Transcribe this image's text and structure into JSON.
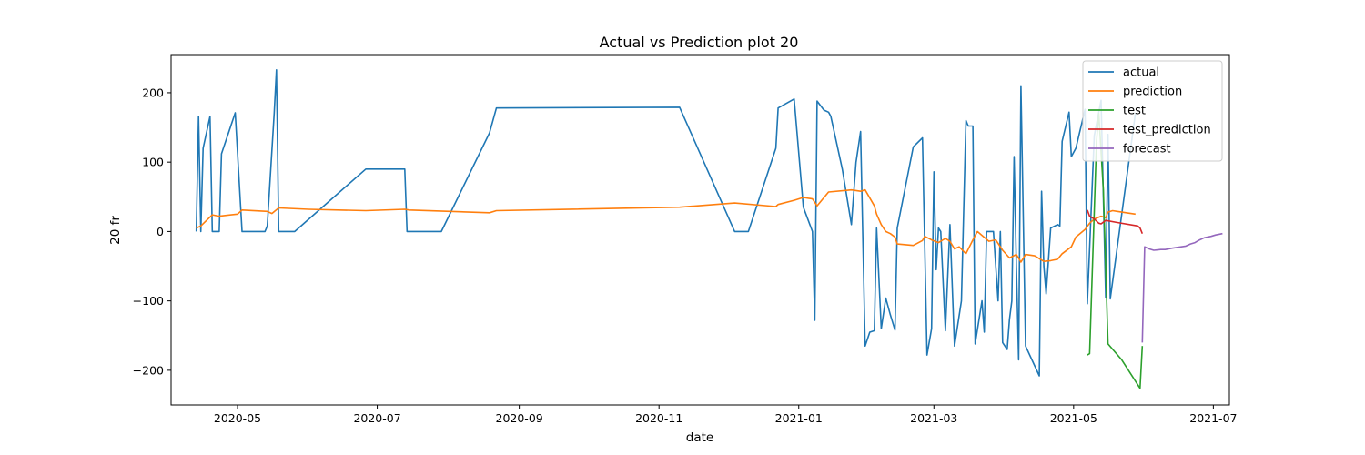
{
  "chart_data": {
    "type": "line",
    "title": "Actual vs Prediction plot 20",
    "xlabel": "date",
    "ylabel": "20 fr",
    "xlim": [
      "2020-04-02",
      "2021-07-08"
    ],
    "ylim": [
      -250,
      255
    ],
    "xticks": [
      "2020-05-01",
      "2020-07-01",
      "2020-09-01",
      "2020-11-01",
      "2021-01-01",
      "2021-03-01",
      "2021-05-01",
      "2021-07-01"
    ],
    "xtick_labels": [
      "2020-05",
      "2020-07",
      "2020-09",
      "2020-11",
      "2021-01",
      "2021-03",
      "2021-05",
      "2021-07"
    ],
    "yticks": [
      -200,
      -100,
      0,
      100,
      200
    ],
    "ytick_labels": [
      "−200",
      "−100",
      "0",
      "100",
      "200"
    ],
    "grid": false,
    "legend": "top-right",
    "series": [
      {
        "name": "actual",
        "color": "#1f77b4",
        "points": [
          [
            "2020-04-13",
            0
          ],
          [
            "2020-04-14",
            166
          ],
          [
            "2020-04-15",
            0
          ],
          [
            "2020-04-16",
            120
          ],
          [
            "2020-04-19",
            166
          ],
          [
            "2020-04-20",
            0
          ],
          [
            "2020-04-23",
            0
          ],
          [
            "2020-04-24",
            112
          ],
          [
            "2020-04-30",
            171
          ],
          [
            "2020-05-03",
            0
          ],
          [
            "2020-05-13",
            0
          ],
          [
            "2020-05-14",
            8
          ],
          [
            "2020-05-17",
            170
          ],
          [
            "2020-05-18",
            233
          ],
          [
            "2020-05-19",
            0
          ],
          [
            "2020-05-26",
            0
          ],
          [
            "2020-06-26",
            90
          ],
          [
            "2020-07-13",
            90
          ],
          [
            "2020-07-14",
            0
          ],
          [
            "2020-07-29",
            0
          ],
          [
            "2020-08-19",
            142
          ],
          [
            "2020-08-22",
            178
          ],
          [
            "2020-11-10",
            179
          ],
          [
            "2020-12-04",
            0
          ],
          [
            "2020-12-10",
            0
          ],
          [
            "2020-12-22",
            120
          ],
          [
            "2020-12-23",
            178
          ],
          [
            "2020-12-30",
            191
          ],
          [
            "2021-01-03",
            35
          ],
          [
            "2021-01-07",
            0
          ],
          [
            "2021-01-08",
            -128
          ],
          [
            "2021-01-09",
            188
          ],
          [
            "2021-01-12",
            175
          ],
          [
            "2021-01-14",
            172
          ],
          [
            "2021-01-15",
            166
          ],
          [
            "2021-01-20",
            90
          ],
          [
            "2021-01-24",
            10
          ],
          [
            "2021-01-26",
            100
          ],
          [
            "2021-01-28",
            144
          ],
          [
            "2021-01-30",
            -165
          ],
          [
            "2021-02-01",
            -145
          ],
          [
            "2021-02-03",
            -143
          ],
          [
            "2021-02-04",
            5
          ],
          [
            "2021-02-06",
            -140
          ],
          [
            "2021-02-08",
            -96
          ],
          [
            "2021-02-10",
            -120
          ],
          [
            "2021-02-12",
            -142
          ],
          [
            "2021-02-13",
            5
          ],
          [
            "2021-02-20",
            122
          ],
          [
            "2021-02-24",
            135
          ],
          [
            "2021-02-26",
            -178
          ],
          [
            "2021-02-28",
            -140
          ],
          [
            "2021-03-01",
            86
          ],
          [
            "2021-03-02",
            -55
          ],
          [
            "2021-03-03",
            5
          ],
          [
            "2021-03-04",
            0
          ],
          [
            "2021-03-06",
            -143
          ],
          [
            "2021-03-08",
            10
          ],
          [
            "2021-03-10",
            -165
          ],
          [
            "2021-03-13",
            -100
          ],
          [
            "2021-03-15",
            160
          ],
          [
            "2021-03-16",
            152
          ],
          [
            "2021-03-18",
            152
          ],
          [
            "2021-03-19",
            -162
          ],
          [
            "2021-03-22",
            -100
          ],
          [
            "2021-03-23",
            -145
          ],
          [
            "2021-03-24",
            0
          ],
          [
            "2021-03-27",
            0
          ],
          [
            "2021-03-29",
            -100
          ],
          [
            "2021-03-30",
            0
          ],
          [
            "2021-03-31",
            -160
          ],
          [
            "2021-04-02",
            -170
          ],
          [
            "2021-04-03",
            -127
          ],
          [
            "2021-04-04",
            -100
          ],
          [
            "2021-04-05",
            108
          ],
          [
            "2021-04-06",
            -50
          ],
          [
            "2021-04-07",
            -185
          ],
          [
            "2021-04-08",
            210
          ],
          [
            "2021-04-10",
            -165
          ],
          [
            "2021-04-16",
            -208
          ],
          [
            "2021-04-17",
            58
          ],
          [
            "2021-04-18",
            -50
          ],
          [
            "2021-04-19",
            -90
          ],
          [
            "2021-04-21",
            5
          ],
          [
            "2021-04-24",
            10
          ],
          [
            "2021-04-25",
            8
          ],
          [
            "2021-04-26",
            130
          ],
          [
            "2021-04-29",
            172
          ],
          [
            "2021-04-30",
            108
          ],
          [
            "2021-05-02",
            120
          ],
          [
            "2021-05-06",
            176
          ],
          [
            "2021-05-07",
            -104
          ],
          [
            "2021-05-10",
            138
          ],
          [
            "2021-05-13",
            189
          ],
          [
            "2021-05-15",
            -95
          ],
          [
            "2021-05-16",
            140
          ],
          [
            "2021-05-17",
            -97
          ],
          [
            "2021-05-28",
            171
          ]
        ]
      },
      {
        "name": "prediction",
        "color": "#ff7f0e",
        "points": [
          [
            "2020-04-13",
            5
          ],
          [
            "2020-04-15",
            8
          ],
          [
            "2020-04-20",
            24
          ],
          [
            "2020-04-23",
            22
          ],
          [
            "2020-05-01",
            25
          ],
          [
            "2020-05-03",
            31
          ],
          [
            "2020-05-14",
            29
          ],
          [
            "2020-05-16",
            26
          ],
          [
            "2020-05-19",
            34
          ],
          [
            "2020-06-01",
            32
          ],
          [
            "2020-06-26",
            30
          ],
          [
            "2020-07-13",
            32
          ],
          [
            "2020-07-15",
            31
          ],
          [
            "2020-08-19",
            27
          ],
          [
            "2020-08-22",
            30
          ],
          [
            "2020-11-10",
            35
          ],
          [
            "2020-12-04",
            41
          ],
          [
            "2020-12-22",
            36
          ],
          [
            "2020-12-23",
            39
          ],
          [
            "2020-12-30",
            45
          ],
          [
            "2021-01-03",
            49
          ],
          [
            "2021-01-07",
            47
          ],
          [
            "2021-01-09",
            37
          ],
          [
            "2021-01-14",
            57
          ],
          [
            "2021-01-24",
            60
          ],
          [
            "2021-01-28",
            58
          ],
          [
            "2021-01-30",
            60
          ],
          [
            "2021-02-03",
            37
          ],
          [
            "2021-02-04",
            25
          ],
          [
            "2021-02-06",
            10
          ],
          [
            "2021-02-08",
            0
          ],
          [
            "2021-02-10",
            -3
          ],
          [
            "2021-02-12",
            -8
          ],
          [
            "2021-02-13",
            -18
          ],
          [
            "2021-02-20",
            -20
          ],
          [
            "2021-02-24",
            -13
          ],
          [
            "2021-02-25",
            -7
          ],
          [
            "2021-02-28",
            -12
          ],
          [
            "2021-03-03",
            -16
          ],
          [
            "2021-03-06",
            -10
          ],
          [
            "2021-03-08",
            -14
          ],
          [
            "2021-03-10",
            -25
          ],
          [
            "2021-03-12",
            -22
          ],
          [
            "2021-03-15",
            -32
          ],
          [
            "2021-03-18",
            -12
          ],
          [
            "2021-03-20",
            0
          ],
          [
            "2021-03-25",
            -14
          ],
          [
            "2021-03-28",
            -12
          ],
          [
            "2021-03-31",
            -27
          ],
          [
            "2021-04-03",
            -38
          ],
          [
            "2021-04-06",
            -33
          ],
          [
            "2021-04-08",
            -44
          ],
          [
            "2021-04-10",
            -33
          ],
          [
            "2021-04-14",
            -35
          ],
          [
            "2021-04-18",
            -43
          ],
          [
            "2021-04-21",
            -42
          ],
          [
            "2021-04-24",
            -40
          ],
          [
            "2021-04-26",
            -32
          ],
          [
            "2021-04-30",
            -22
          ],
          [
            "2021-05-02",
            -8
          ],
          [
            "2021-05-06",
            3
          ],
          [
            "2021-05-08",
            12
          ],
          [
            "2021-05-10",
            18
          ],
          [
            "2021-05-13",
            22
          ],
          [
            "2021-05-15",
            20
          ],
          [
            "2021-05-16",
            28
          ],
          [
            "2021-05-18",
            30
          ],
          [
            "2021-05-20",
            29
          ],
          [
            "2021-05-24",
            27
          ],
          [
            "2021-05-28",
            25
          ]
        ]
      },
      {
        "name": "test",
        "color": "#2ca02c",
        "points": [
          [
            "2021-05-07",
            -178
          ],
          [
            "2021-05-08",
            -176
          ],
          [
            "2021-05-11",
            130
          ],
          [
            "2021-05-12",
            170
          ],
          [
            "2021-05-14",
            60
          ],
          [
            "2021-05-16",
            -162
          ],
          [
            "2021-05-22",
            -185
          ],
          [
            "2021-05-30",
            -226
          ],
          [
            "2021-05-31",
            -165
          ]
        ]
      },
      {
        "name": "test_prediction",
        "color": "#d62728",
        "points": [
          [
            "2021-05-07",
            31
          ],
          [
            "2021-05-08",
            22
          ],
          [
            "2021-05-10",
            18
          ],
          [
            "2021-05-12",
            12
          ],
          [
            "2021-05-13",
            11
          ],
          [
            "2021-05-15",
            16
          ],
          [
            "2021-05-20",
            13
          ],
          [
            "2021-05-29",
            8
          ],
          [
            "2021-05-30",
            5
          ],
          [
            "2021-05-31",
            -3
          ]
        ]
      },
      {
        "name": "forecast",
        "color": "#9467bd",
        "points": [
          [
            "2021-05-31",
            -160
          ],
          [
            "2021-06-01",
            -22
          ],
          [
            "2021-06-03",
            -25
          ],
          [
            "2021-06-05",
            -27
          ],
          [
            "2021-06-08",
            -26
          ],
          [
            "2021-06-10",
            -26
          ],
          [
            "2021-06-13",
            -24
          ],
          [
            "2021-06-15",
            -23
          ],
          [
            "2021-06-17",
            -22
          ],
          [
            "2021-06-19",
            -21
          ],
          [
            "2021-06-21",
            -18
          ],
          [
            "2021-06-23",
            -16
          ],
          [
            "2021-06-25",
            -12
          ],
          [
            "2021-06-27",
            -9
          ],
          [
            "2021-06-30",
            -7
          ],
          [
            "2021-07-02",
            -5
          ],
          [
            "2021-07-05",
            -3
          ]
        ]
      }
    ]
  }
}
